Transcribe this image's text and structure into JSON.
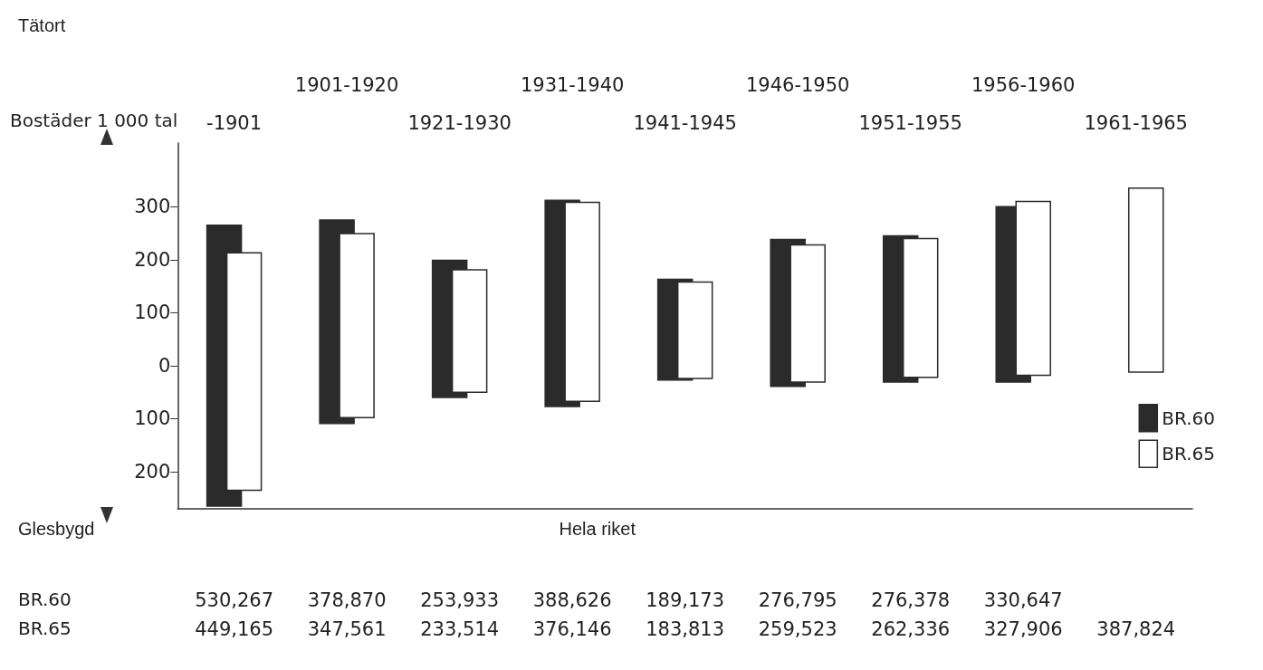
{
  "chart_data": {
    "type": "bar",
    "ylabel": "Bostäder 1 000 tal",
    "categories": [
      "-1901",
      "1901-1920",
      "1921-1930",
      "1931-1940",
      "1941-1945",
      "1946-1950",
      "1951-1955",
      "1956-1960",
      "1961-1965"
    ],
    "series": [
      {
        "name": "BR.60",
        "color": "#2b2b2b",
        "base": [
          -265,
          -109,
          -60,
          -77,
          -27,
          -39,
          -31,
          -31,
          null
        ],
        "values": [
          530,
          384,
          259,
          389,
          190,
          277,
          276,
          331,
          null
        ]
      },
      {
        "name": "BR.65",
        "color": "#ffffff",
        "base": [
          -235,
          -98,
          -50,
          -67,
          -24,
          -31,
          -22,
          -18,
          -12
        ],
        "values": [
          448,
          347,
          231,
          375,
          182,
          259,
          262,
          328,
          347
        ]
      }
    ],
    "ylim": [
      -270,
      420
    ],
    "yticks": [
      {
        "value": -200,
        "label": "200"
      },
      {
        "value": -100,
        "label": "100"
      },
      0,
      100,
      200,
      300
    ],
    "annotations": [
      "Tätort",
      "Glesbygd",
      "Hela riket",
      "BR.60 530,267 378,870 253,933 388,626 189,173 276,795 276,378 330,647",
      "BR.65 449,165 347,561 233,514 376,146 183,813 259,523 262,336 327,906 387,824"
    ],
    "legend": "bottom right",
    "grid": false
  }
}
